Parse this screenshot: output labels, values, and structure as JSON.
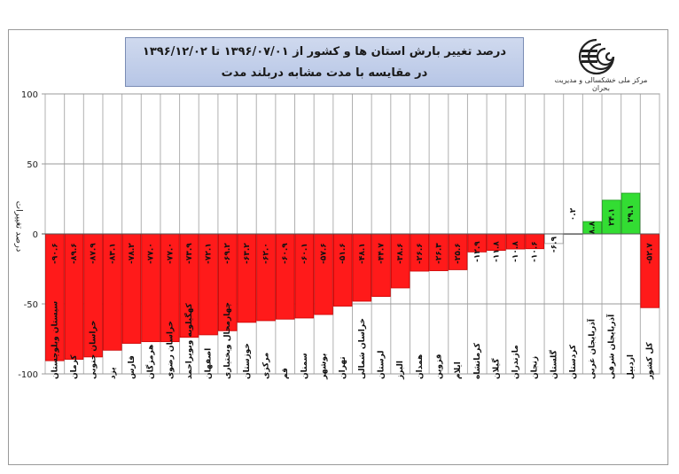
{
  "header": {
    "title_line1": "درصد تغییر بارش استان ها و کشور از    ۱۳۹۶/۰۷/۰۱ تا ۱۳۹۶/۱۲/۰۲",
    "title_line2": "در مقایسه با مدت مشابه دربلند مدت",
    "logo_caption": "مرکز ملی خشکسالی و مدیریت بحران"
  },
  "chart_data": {
    "type": "bar",
    "title": "درصد تغییر بارش استان ها و کشور از ۱۳۹۶/۰۷/۰۱ تا ۱۳۹۶/۱۲/۰۲ در مقایسه با مدت مشابه دربلند مدت",
    "ylabel": "درصد تغییرات",
    "xlabel": "",
    "ylim": [
      -100,
      100
    ],
    "yticks": [
      100,
      50,
      0,
      -50,
      -100
    ],
    "ytick_labels": [
      "100",
      "50",
      "0",
      "-50",
      "-100"
    ],
    "grid": true,
    "categories": [
      "سیستان وبلوچستان",
      "کرمان",
      "خراسان جنوبی",
      "یزد",
      "فارس",
      "هرمزگان",
      "خراسان رضوی",
      "کهگیلویه وبویراحمد",
      "اصفهان",
      "چهارمحال وبختیاری",
      "خوزستان",
      "مرکزی",
      "قم",
      "سمنان",
      "بوشهر",
      "تهران",
      "خراسان شمالی",
      "لرستان",
      "البرز",
      "همدان",
      "قزوین",
      "ایلام",
      "کرمانشاه",
      "گیلان",
      "مازندران",
      "زنجان",
      "گلستان",
      "کردستان",
      "آذربایجان غربی",
      "آذربایجان شرقی",
      "اردبیل",
      "کل کشور"
    ],
    "values": [
      -90.6,
      -89.6,
      -87.9,
      -83.1,
      -78.2,
      -77.0,
      -77.0,
      -73.9,
      -72.1,
      -69.2,
      -63.2,
      -62.0,
      -60.9,
      -60.1,
      -57.6,
      -51.6,
      -48.1,
      -44.7,
      -38.6,
      -26.6,
      -26.3,
      -25.6,
      -12.9,
      -11.8,
      -10.8,
      -10.6,
      -6.9,
      0.2,
      8.8,
      24.1,
      29.1,
      -52.7
    ],
    "value_labels": [
      "-۹۰.۶",
      "-۸۹.۶",
      "-۸۷.۹",
      "-۸۳.۱",
      "-۷۸.۲",
      "-۷۷.۰",
      "-۷۷.۰",
      "-۷۳.۹",
      "-۷۲.۱",
      "-۶۹.۲",
      "-۶۳.۲",
      "-۶۲.۰",
      "-۶۰.۹",
      "-۶۰.۱",
      "-۵۷.۶",
      "-۵۱.۶",
      "-۴۸.۱",
      "-۴۴.۷",
      "-۳۸.۶",
      "-۲۶.۶",
      "-۲۶.۳",
      "-۲۵.۶",
      "-۱۲.۹",
      "-۱۱.۸",
      "-۱۰.۸",
      "-۱۰.۶",
      "-۶.۹",
      "۰.۲",
      "۸.۸",
      "۲۴.۱",
      "۲۹.۱",
      "-۵۲.۷"
    ],
    "colors": {
      "negative": "#ff1a1a",
      "positive": "#33dd33",
      "near_zero": "#ffffff",
      "bar_edge": "#cc0000"
    }
  }
}
